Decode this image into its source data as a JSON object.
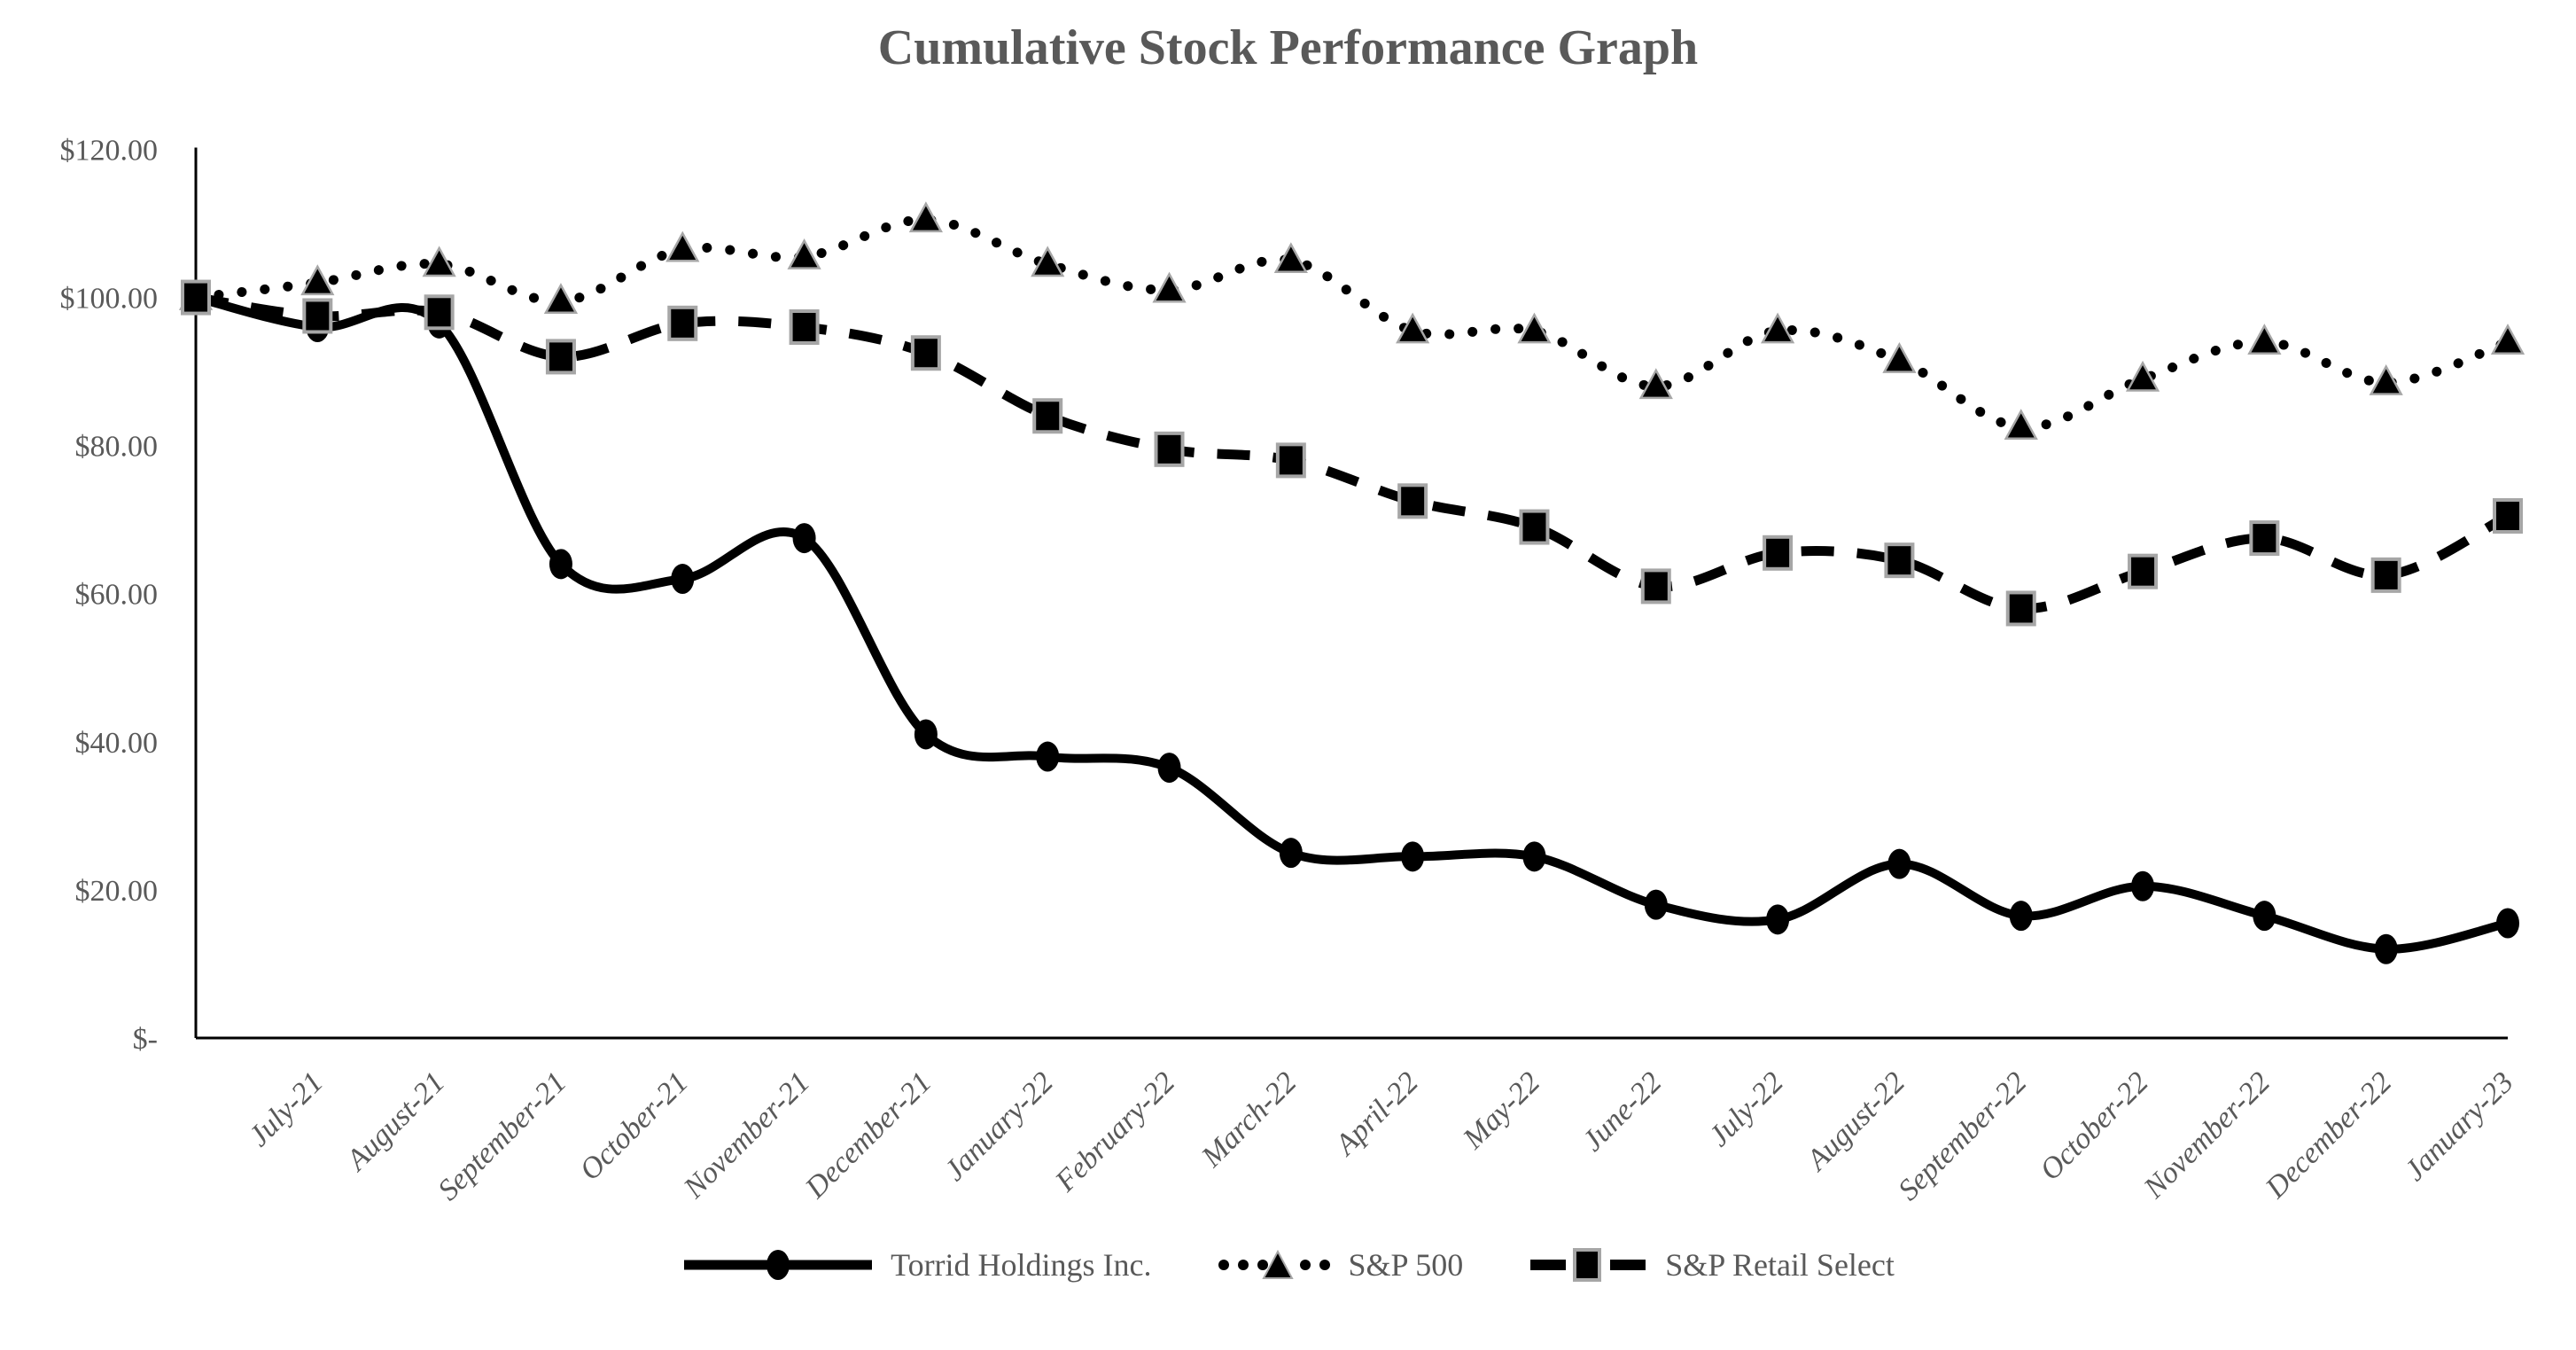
{
  "title": "Cumulative Stock Performance Graph",
  "chart_data": {
    "type": "line",
    "title": "Cumulative Stock Performance Graph",
    "xlabel": "",
    "ylabel": "",
    "grid": false,
    "legend_position": "bottom",
    "ylim": [
      0,
      120
    ],
    "ytick_interval": 20,
    "y_ticks": [
      {
        "value": 120,
        "label": "$120.00"
      },
      {
        "value": 100,
        "label": "$100.00"
      },
      {
        "value": 80,
        "label": "$80.00"
      },
      {
        "value": 60,
        "label": "$60.00"
      },
      {
        "value": 40,
        "label": "$40.00"
      },
      {
        "value": 20,
        "label": "$20.00"
      },
      {
        "value": 0,
        "label": "$-"
      }
    ],
    "x_categories": [
      "",
      "July-21",
      "August-21",
      "September-21",
      "October-21",
      "November-21",
      "December-21",
      "January-22",
      "February-22",
      "March-22",
      "April-22",
      "May-22",
      "June-22",
      "July-22",
      "August-22",
      "September-22",
      "October-22",
      "November-22",
      "December-22",
      "January-23"
    ],
    "series": [
      {
        "name": "Torrid Holdings Inc.",
        "line": "solid",
        "marker": "circle",
        "values": [
          100,
          96,
          96.5,
          64,
          62,
          67.5,
          41,
          38,
          36.5,
          25,
          24.5,
          24.5,
          18,
          16,
          23.5,
          16.5,
          20.5,
          16.5,
          12,
          15.5
        ]
      },
      {
        "name": "S&P 500",
        "line": "dotted",
        "marker": "triangle",
        "values": [
          100,
          102,
          104.5,
          99.5,
          106.5,
          105.5,
          110.5,
          104.5,
          101,
          105,
          95.5,
          95.5,
          88,
          95.5,
          91.5,
          82.5,
          89,
          94,
          88.5,
          94
        ]
      },
      {
        "name": "S&P Retail Select",
        "line": "dashed",
        "marker": "square",
        "values": [
          100,
          97.5,
          98,
          92,
          96.5,
          96,
          92.5,
          84,
          79.5,
          78,
          72.5,
          69,
          61,
          65.5,
          64.5,
          58,
          63,
          67.5,
          62.5,
          70.5
        ]
      }
    ]
  },
  "colors": {
    "text": "#595959",
    "series_color": "#000000",
    "marker_border": "#a6a6a6",
    "axis": "#000000",
    "background": "#ffffff"
  }
}
